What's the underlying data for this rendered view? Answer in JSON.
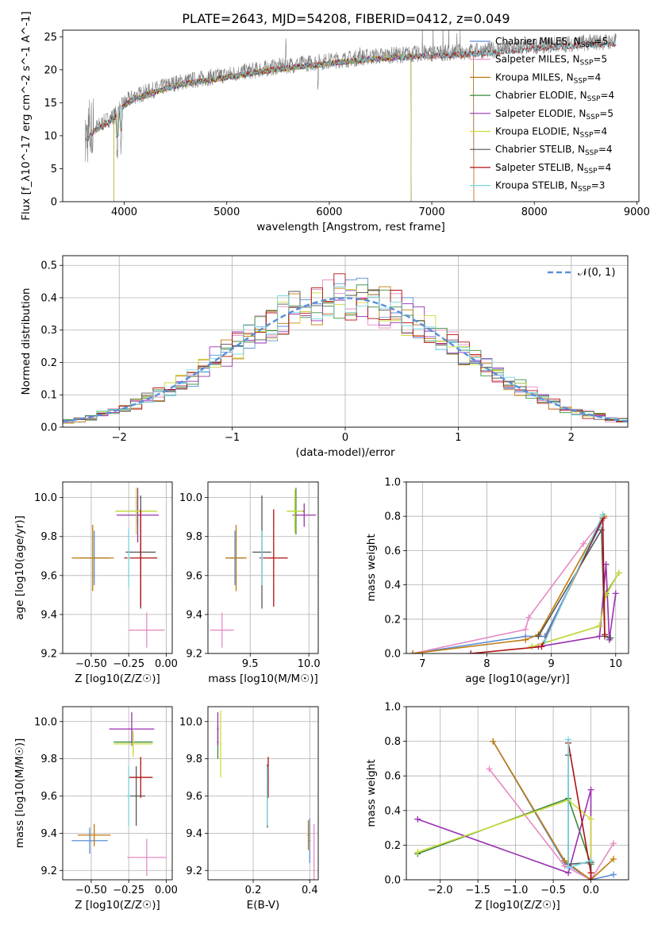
{
  "title": "PLATE=2643, MJD=54208, FIBERID=0412, z=0.049",
  "colors": {
    "chabrier_miles": "#5a8fd8",
    "salpeter_miles": "#e68ac4",
    "kroupa_miles": "#c07a0a",
    "chabrier_elodie": "#3a8a3a",
    "salpeter_elodie": "#9a30b0",
    "kroupa_elodie": "#cddc39",
    "chabrier_stelib": "#555555",
    "salpeter_stelib": "#b01010",
    "kroupa_stelib": "#76d7e0",
    "data": "#808080",
    "gaussian": "#5a8fd8",
    "grid": "#b0b0b0"
  },
  "chart_data": [
    {
      "type": "line",
      "id": "spectrum",
      "xlabel": "wavelength [Angstrom, rest frame]",
      "ylabel": "Flux [f_λ10^-17 erg cm^-2 s^-1 A^-1]",
      "xlim": [
        3400,
        9020
      ],
      "ylim": [
        0,
        26
      ],
      "xticks": [
        "4000",
        "5000",
        "6000",
        "7000",
        "8000",
        "9000"
      ],
      "yticks": [
        "0",
        "5",
        "10",
        "15",
        "20",
        "25"
      ],
      "legend_position": "right",
      "legend": [
        {
          "base": "Chabrier MILES, N",
          "sub": "SSP",
          "tail": "=5"
        },
        {
          "base": "Salpeter MILES, N",
          "sub": "SSP",
          "tail": "=5"
        },
        {
          "base": "Kroupa MILES, N",
          "sub": "SSP",
          "tail": "=4"
        },
        {
          "base": "Chabrier ELODIE, N",
          "sub": "SSP",
          "tail": "=4"
        },
        {
          "base": "Salpeter ELODIE, N",
          "sub": "SSP",
          "tail": "=5"
        },
        {
          "base": "Kroupa ELODIE, N",
          "sub": "SSP",
          "tail": "=4"
        },
        {
          "base": "Chabrier STELIB, N",
          "sub": "SSP",
          "tail": "=4"
        },
        {
          "base": "Salpeter STELIB, N",
          "sub": "SSP",
          "tail": "=4"
        },
        {
          "base": "Kroupa STELIB, N",
          "sub": "SSP",
          "tail": "=3"
        }
      ],
      "data_envelope": {
        "x": [
          3620,
          3700,
          3800,
          3900,
          4000,
          4100,
          4200,
          4300,
          4500,
          4700,
          4900,
          5100,
          5300,
          5500,
          5800,
          6100,
          6400,
          6700,
          7000,
          7200,
          7400,
          7600,
          7800,
          8000,
          8200,
          8400,
          8600,
          8800
        ],
        "y": [
          9.5,
          11,
          12,
          13,
          15,
          16,
          16.5,
          17,
          18,
          18.5,
          19,
          19.5,
          20,
          20.5,
          21,
          21.5,
          22,
          22.3,
          22.5,
          22.6,
          22.8,
          23,
          23.3,
          23.6,
          23.8,
          24,
          24.2,
          24.3
        ]
      }
    },
    {
      "type": "line",
      "id": "residual_histogram",
      "xlabel": "(data-model)/error",
      "ylabel": "Normed distribution",
      "xlim": [
        -2.5,
        2.5
      ],
      "ylim": [
        0,
        0.53
      ],
      "xticks": [
        "−2",
        "−1",
        "0",
        "1",
        "2"
      ],
      "yticks": [
        "0.0",
        "0.1",
        "0.2",
        "0.3",
        "0.4",
        "0.5"
      ],
      "legend": [
        {
          "name": "𝒩(0, 1)"
        }
      ],
      "legend_position": "upper right"
    },
    {
      "type": "scatter",
      "id": "age_vs_Z",
      "xlabel": "Z [log10(Z/Z☉)]",
      "ylabel": "age  [log10(age/yr)]",
      "xlim": [
        -0.69,
        0.04
      ],
      "ylim": [
        9.2,
        10.08
      ],
      "xticks": [
        "−0.50",
        "−0.25",
        "0.00"
      ],
      "yticks": [
        "9.2",
        "9.4",
        "9.6",
        "9.8",
        "10.0"
      ],
      "points": [
        {
          "model": "chabrier_miles",
          "x": -0.48,
          "y": 9.69,
          "xerr": 0.1,
          "yerr": 0.14
        },
        {
          "model": "salpeter_miles",
          "x": -0.13,
          "y": 9.32,
          "xerr": 0.12,
          "yerr": 0.09
        },
        {
          "model": "kroupa_miles",
          "x": -0.49,
          "y": 9.69,
          "xerr": 0.14,
          "yerr": 0.17
        },
        {
          "model": "chabrier_elodie",
          "x": -0.2,
          "y": 9.93,
          "xerr": 0.13,
          "yerr": 0.07
        },
        {
          "model": "salpeter_elodie",
          "x": -0.19,
          "y": 9.91,
          "xerr": 0.14,
          "yerr": 0.14
        },
        {
          "model": "kroupa_elodie",
          "x": -0.2,
          "y": 9.93,
          "xerr": 0.14,
          "yerr": 0.12
        },
        {
          "model": "chabrier_stelib",
          "x": -0.17,
          "y": 9.72,
          "xerr": 0.1,
          "yerr": 0.29
        },
        {
          "model": "salpeter_stelib",
          "x": -0.17,
          "y": 9.69,
          "xerr": 0.11,
          "yerr": 0.25
        },
        {
          "model": "kroupa_stelib",
          "x": -0.25,
          "y": 9.69,
          "xerr": 0.01,
          "yerr": 0.15
        }
      ]
    },
    {
      "type": "scatter",
      "id": "age_vs_mass",
      "xlabel": "mass [log10(M/M☉)]",
      "ylabel": "",
      "xlim": [
        9.14,
        10.08
      ],
      "ylim": [
        9.2,
        10.08
      ],
      "xticks": [
        "9.5",
        "10.0"
      ],
      "yticks": [
        "9.2",
        "9.4",
        "9.6",
        "9.8",
        "10.0"
      ],
      "points": [
        {
          "model": "chabrier_miles",
          "x": 9.37,
          "y": 9.69,
          "xerr": 0.08,
          "yerr": 0.14
        },
        {
          "model": "salpeter_miles",
          "x": 9.26,
          "y": 9.32,
          "xerr": 0.1,
          "yerr": 0.09
        },
        {
          "model": "kroupa_miles",
          "x": 9.38,
          "y": 9.69,
          "xerr": 0.09,
          "yerr": 0.17
        },
        {
          "model": "chabrier_elodie",
          "x": 9.89,
          "y": 9.93,
          "xerr": 0.07,
          "yerr": 0.12
        },
        {
          "model": "salpeter_elodie",
          "x": 9.96,
          "y": 9.91,
          "xerr": 0.1,
          "yerr": 0.06
        },
        {
          "model": "kroupa_elodie",
          "x": 9.88,
          "y": 9.93,
          "xerr": 0.07,
          "yerr": 0.11
        },
        {
          "model": "chabrier_stelib",
          "x": 9.6,
          "y": 9.72,
          "xerr": 0.08,
          "yerr": 0.29
        },
        {
          "model": "salpeter_stelib",
          "x": 9.7,
          "y": 9.69,
          "xerr": 0.12,
          "yerr": 0.25
        },
        {
          "model": "kroupa_stelib",
          "x": 9.6,
          "y": 9.69,
          "xerr": 0.01,
          "yerr": 0.14
        }
      ]
    },
    {
      "type": "line",
      "id": "mass_weight_vs_age",
      "xlabel": "age  [log10(age/yr)]",
      "ylabel": "mass weight",
      "xlim": [
        6.75,
        10.2
      ],
      "ylim": [
        0,
        1.0
      ],
      "xticks": [
        "7",
        "8",
        "9",
        "10"
      ],
      "yticks": [
        "0.0",
        "0.2",
        "0.4",
        "0.6",
        "0.8",
        "1.0"
      ],
      "series": [
        {
          "model": "chabrier_miles",
          "x": [
            6.85,
            8.6,
            8.9,
            9.82
          ],
          "y": [
            0.0,
            0.1,
            0.1,
            0.79
          ]
        },
        {
          "model": "salpeter_miles",
          "x": [
            6.85,
            8.6,
            8.65,
            9.5,
            9.82
          ],
          "y": [
            0.0,
            0.14,
            0.21,
            0.64,
            0.79
          ]
        },
        {
          "model": "kroupa_miles",
          "x": [
            6.85,
            8.6,
            8.8,
            9.82
          ],
          "y": [
            0.0,
            0.08,
            0.11,
            0.8
          ]
        },
        {
          "model": "chabrier_elodie",
          "x": [
            8.7,
            9.75,
            9.85,
            10.05
          ],
          "y": [
            0.04,
            0.16,
            0.35,
            0.47
          ]
        },
        {
          "model": "salpeter_elodie",
          "x": [
            8.8,
            9.75,
            9.85,
            9.9,
            10.0
          ],
          "y": [
            0.04,
            0.1,
            0.52,
            0.08,
            0.35
          ]
        },
        {
          "model": "kroupa_elodie",
          "x": [
            8.7,
            9.75,
            9.85,
            10.05
          ],
          "y": [
            0.04,
            0.16,
            0.34,
            0.47
          ]
        },
        {
          "model": "chabrier_stelib",
          "x": [
            8.8,
            9.78,
            9.83,
            9.92
          ],
          "y": [
            0.1,
            0.72,
            0.1,
            0.09
          ]
        },
        {
          "model": "salpeter_stelib",
          "x": [
            7.75,
            8.85,
            9.8,
            9.83
          ],
          "y": [
            0.0,
            0.04,
            0.79,
            0.11
          ]
        },
        {
          "model": "kroupa_stelib",
          "x": [
            8.9,
            9.8
          ],
          "y": [
            0.07,
            0.81
          ]
        }
      ]
    },
    {
      "type": "scatter",
      "id": "mass_vs_Z",
      "xlabel": "Z [log10(Z/Z☉)]",
      "ylabel": "mass [log10(M/M☉)]",
      "xlim": [
        -0.69,
        0.04
      ],
      "ylim": [
        9.15,
        10.08
      ],
      "xticks": [
        "−0.50",
        "−0.25",
        "0.00"
      ],
      "yticks": [
        "9.2",
        "9.4",
        "9.6",
        "9.8",
        "10.0"
      ],
      "points": [
        {
          "model": "chabrier_miles",
          "x": -0.51,
          "y": 9.36,
          "xerr": 0.12,
          "yerr": 0.07
        },
        {
          "model": "salpeter_miles",
          "x": -0.13,
          "y": 9.27,
          "xerr": 0.13,
          "yerr": 0.1
        },
        {
          "model": "kroupa_miles",
          "x": -0.48,
          "y": 9.39,
          "xerr": 0.11,
          "yerr": 0.06
        },
        {
          "model": "chabrier_elodie",
          "x": -0.22,
          "y": 9.89,
          "xerr": 0.13,
          "yerr": 0.06
        },
        {
          "model": "salpeter_elodie",
          "x": -0.23,
          "y": 9.96,
          "xerr": 0.15,
          "yerr": 0.09
        },
        {
          "model": "kroupa_elodie",
          "x": -0.22,
          "y": 9.88,
          "xerr": 0.13,
          "yerr": 0.07
        },
        {
          "model": "chabrier_stelib",
          "x": -0.2,
          "y": 9.6,
          "xerr": 0.06,
          "yerr": 0.16
        },
        {
          "model": "salpeter_stelib",
          "x": -0.17,
          "y": 9.7,
          "xerr": 0.08,
          "yerr": 0.11
        },
        {
          "model": "kroupa_stelib",
          "x": -0.25,
          "y": 9.6,
          "xerr": 0.01,
          "yerr": 0.16
        }
      ]
    },
    {
      "type": "scatter",
      "id": "mass_vs_ebv",
      "xlabel": "E(B-V)",
      "ylabel": "",
      "xlim": [
        0.04,
        0.43
      ],
      "ylim": [
        9.15,
        10.08
      ],
      "xticks": [
        "0.2",
        "0.4"
      ],
      "yticks": [
        "9.2",
        "9.4",
        "9.6",
        "9.8",
        "10.0"
      ],
      "points": [
        {
          "model": "chabrier_miles",
          "x": 0.4,
          "y": 9.36,
          "xerr": 0.003,
          "yerr": 0.12
        },
        {
          "model": "salpeter_miles",
          "x": 0.415,
          "y": 9.27,
          "xerr": 0.002,
          "yerr": 0.18
        },
        {
          "model": "kroupa_miles",
          "x": 0.395,
          "y": 9.39,
          "xerr": 0.003,
          "yerr": 0.08
        },
        {
          "model": "chabrier_elodie",
          "x": 0.075,
          "y": 9.89,
          "xerr": 0.003,
          "yerr": 0.09
        },
        {
          "model": "salpeter_elodie",
          "x": 0.075,
          "y": 9.96,
          "xerr": 0.003,
          "yerr": 0.09
        },
        {
          "model": "kroupa_elodie",
          "x": 0.085,
          "y": 9.88,
          "xerr": 0.003,
          "yerr": 0.18
        },
        {
          "model": "chabrier_stelib",
          "x": 0.25,
          "y": 9.6,
          "xerr": 0.002,
          "yerr": 0.17
        },
        {
          "model": "salpeter_stelib",
          "x": 0.253,
          "y": 9.7,
          "xerr": 0.002,
          "yerr": 0.11
        },
        {
          "model": "kroupa_stelib",
          "x": 0.25,
          "y": 9.6,
          "xerr": 0.002,
          "yerr": 0.16
        }
      ]
    },
    {
      "type": "line",
      "id": "mass_weight_vs_Z",
      "xlabel": "Z [log10(Z/Z☉)]",
      "ylabel": "mass weight",
      "xlim": [
        -2.45,
        0.5
      ],
      "ylim": [
        0,
        1.0
      ],
      "xticks": [
        "−2.0",
        "−1.5",
        "−1.0",
        "−0.5",
        "0.0"
      ],
      "yticks": [
        "0.0",
        "0.2",
        "0.4",
        "0.6",
        "0.8",
        "1.0"
      ],
      "series": [
        {
          "model": "chabrier_miles",
          "x": [
            -1.3,
            -0.35,
            0.0,
            0.3
          ],
          "y": [
            0.8,
            0.1,
            0.0,
            0.03
          ]
        },
        {
          "model": "salpeter_miles",
          "x": [
            -1.35,
            -0.35,
            0.0,
            0.3
          ],
          "y": [
            0.64,
            0.08,
            0.0,
            0.21
          ]
        },
        {
          "model": "kroupa_miles",
          "x": [
            -1.3,
            -0.35,
            0.0,
            0.3
          ],
          "y": [
            0.8,
            0.11,
            0.0,
            0.12
          ]
        },
        {
          "model": "chabrier_elodie",
          "x": [
            -2.3,
            -0.3,
            0.0
          ],
          "y": [
            0.15,
            0.47,
            0.09
          ]
        },
        {
          "model": "salpeter_elodie",
          "x": [
            -2.3,
            -0.3,
            0.0,
            0.0
          ],
          "y": [
            0.35,
            0.04,
            0.52,
            0.0
          ]
        },
        {
          "model": "kroupa_elodie",
          "x": [
            -2.3,
            -0.3,
            0.0,
            0.0
          ],
          "y": [
            0.16,
            0.46,
            0.35,
            0.04
          ]
        },
        {
          "model": "chabrier_stelib",
          "x": [
            -0.3,
            -0.3,
            0.0,
            0.0
          ],
          "y": [
            0.72,
            0.09,
            0.1,
            0.0
          ]
        },
        {
          "model": "salpeter_stelib",
          "x": [
            -0.3,
            0.0,
            0.0
          ],
          "y": [
            0.79,
            0.04,
            0.0
          ]
        },
        {
          "model": "kroupa_stelib",
          "x": [
            -0.3,
            -0.3,
            0.0
          ],
          "y": [
            0.81,
            0.07,
            0.11
          ]
        }
      ]
    }
  ]
}
